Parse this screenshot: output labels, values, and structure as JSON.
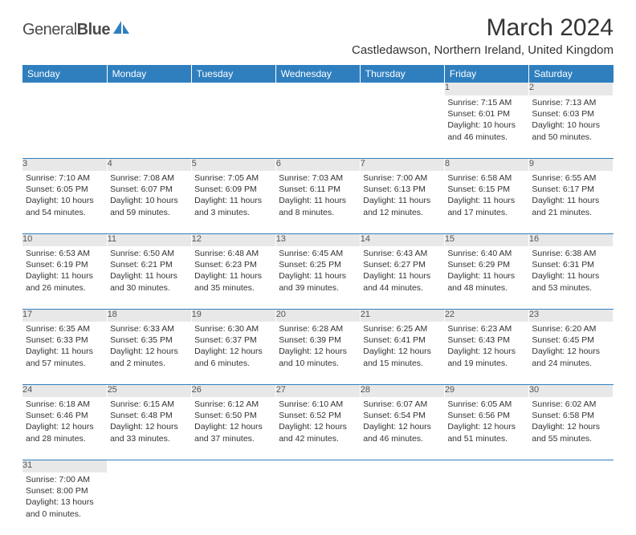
{
  "logo": {
    "part1": "General",
    "part2": "Blue",
    "shape_color": "#2f7fbf"
  },
  "title": "March 2024",
  "location": "Castledawson, Northern Ireland, United Kingdom",
  "colors": {
    "header_bg": "#2f7fbf",
    "header_fg": "#ffffff",
    "daynum_bg": "#e8e8e8"
  },
  "day_headers": [
    "Sunday",
    "Monday",
    "Tuesday",
    "Wednesday",
    "Thursday",
    "Friday",
    "Saturday"
  ],
  "weeks": [
    [
      {
        "n": "",
        "sr": "",
        "ss": "",
        "dl": ""
      },
      {
        "n": "",
        "sr": "",
        "ss": "",
        "dl": ""
      },
      {
        "n": "",
        "sr": "",
        "ss": "",
        "dl": ""
      },
      {
        "n": "",
        "sr": "",
        "ss": "",
        "dl": ""
      },
      {
        "n": "",
        "sr": "",
        "ss": "",
        "dl": ""
      },
      {
        "n": "1",
        "sr": "Sunrise: 7:15 AM",
        "ss": "Sunset: 6:01 PM",
        "dl": "Daylight: 10 hours and 46 minutes."
      },
      {
        "n": "2",
        "sr": "Sunrise: 7:13 AM",
        "ss": "Sunset: 6:03 PM",
        "dl": "Daylight: 10 hours and 50 minutes."
      }
    ],
    [
      {
        "n": "3",
        "sr": "Sunrise: 7:10 AM",
        "ss": "Sunset: 6:05 PM",
        "dl": "Daylight: 10 hours and 54 minutes."
      },
      {
        "n": "4",
        "sr": "Sunrise: 7:08 AM",
        "ss": "Sunset: 6:07 PM",
        "dl": "Daylight: 10 hours and 59 minutes."
      },
      {
        "n": "5",
        "sr": "Sunrise: 7:05 AM",
        "ss": "Sunset: 6:09 PM",
        "dl": "Daylight: 11 hours and 3 minutes."
      },
      {
        "n": "6",
        "sr": "Sunrise: 7:03 AM",
        "ss": "Sunset: 6:11 PM",
        "dl": "Daylight: 11 hours and 8 minutes."
      },
      {
        "n": "7",
        "sr": "Sunrise: 7:00 AM",
        "ss": "Sunset: 6:13 PM",
        "dl": "Daylight: 11 hours and 12 minutes."
      },
      {
        "n": "8",
        "sr": "Sunrise: 6:58 AM",
        "ss": "Sunset: 6:15 PM",
        "dl": "Daylight: 11 hours and 17 minutes."
      },
      {
        "n": "9",
        "sr": "Sunrise: 6:55 AM",
        "ss": "Sunset: 6:17 PM",
        "dl": "Daylight: 11 hours and 21 minutes."
      }
    ],
    [
      {
        "n": "10",
        "sr": "Sunrise: 6:53 AM",
        "ss": "Sunset: 6:19 PM",
        "dl": "Daylight: 11 hours and 26 minutes."
      },
      {
        "n": "11",
        "sr": "Sunrise: 6:50 AM",
        "ss": "Sunset: 6:21 PM",
        "dl": "Daylight: 11 hours and 30 minutes."
      },
      {
        "n": "12",
        "sr": "Sunrise: 6:48 AM",
        "ss": "Sunset: 6:23 PM",
        "dl": "Daylight: 11 hours and 35 minutes."
      },
      {
        "n": "13",
        "sr": "Sunrise: 6:45 AM",
        "ss": "Sunset: 6:25 PM",
        "dl": "Daylight: 11 hours and 39 minutes."
      },
      {
        "n": "14",
        "sr": "Sunrise: 6:43 AM",
        "ss": "Sunset: 6:27 PM",
        "dl": "Daylight: 11 hours and 44 minutes."
      },
      {
        "n": "15",
        "sr": "Sunrise: 6:40 AM",
        "ss": "Sunset: 6:29 PM",
        "dl": "Daylight: 11 hours and 48 minutes."
      },
      {
        "n": "16",
        "sr": "Sunrise: 6:38 AM",
        "ss": "Sunset: 6:31 PM",
        "dl": "Daylight: 11 hours and 53 minutes."
      }
    ],
    [
      {
        "n": "17",
        "sr": "Sunrise: 6:35 AM",
        "ss": "Sunset: 6:33 PM",
        "dl": "Daylight: 11 hours and 57 minutes."
      },
      {
        "n": "18",
        "sr": "Sunrise: 6:33 AM",
        "ss": "Sunset: 6:35 PM",
        "dl": "Daylight: 12 hours and 2 minutes."
      },
      {
        "n": "19",
        "sr": "Sunrise: 6:30 AM",
        "ss": "Sunset: 6:37 PM",
        "dl": "Daylight: 12 hours and 6 minutes."
      },
      {
        "n": "20",
        "sr": "Sunrise: 6:28 AM",
        "ss": "Sunset: 6:39 PM",
        "dl": "Daylight: 12 hours and 10 minutes."
      },
      {
        "n": "21",
        "sr": "Sunrise: 6:25 AM",
        "ss": "Sunset: 6:41 PM",
        "dl": "Daylight: 12 hours and 15 minutes."
      },
      {
        "n": "22",
        "sr": "Sunrise: 6:23 AM",
        "ss": "Sunset: 6:43 PM",
        "dl": "Daylight: 12 hours and 19 minutes."
      },
      {
        "n": "23",
        "sr": "Sunrise: 6:20 AM",
        "ss": "Sunset: 6:45 PM",
        "dl": "Daylight: 12 hours and 24 minutes."
      }
    ],
    [
      {
        "n": "24",
        "sr": "Sunrise: 6:18 AM",
        "ss": "Sunset: 6:46 PM",
        "dl": "Daylight: 12 hours and 28 minutes."
      },
      {
        "n": "25",
        "sr": "Sunrise: 6:15 AM",
        "ss": "Sunset: 6:48 PM",
        "dl": "Daylight: 12 hours and 33 minutes."
      },
      {
        "n": "26",
        "sr": "Sunrise: 6:12 AM",
        "ss": "Sunset: 6:50 PM",
        "dl": "Daylight: 12 hours and 37 minutes."
      },
      {
        "n": "27",
        "sr": "Sunrise: 6:10 AM",
        "ss": "Sunset: 6:52 PM",
        "dl": "Daylight: 12 hours and 42 minutes."
      },
      {
        "n": "28",
        "sr": "Sunrise: 6:07 AM",
        "ss": "Sunset: 6:54 PM",
        "dl": "Daylight: 12 hours and 46 minutes."
      },
      {
        "n": "29",
        "sr": "Sunrise: 6:05 AM",
        "ss": "Sunset: 6:56 PM",
        "dl": "Daylight: 12 hours and 51 minutes."
      },
      {
        "n": "30",
        "sr": "Sunrise: 6:02 AM",
        "ss": "Sunset: 6:58 PM",
        "dl": "Daylight: 12 hours and 55 minutes."
      }
    ],
    [
      {
        "n": "31",
        "sr": "Sunrise: 7:00 AM",
        "ss": "Sunset: 8:00 PM",
        "dl": "Daylight: 13 hours and 0 minutes."
      },
      {
        "n": "",
        "sr": "",
        "ss": "",
        "dl": ""
      },
      {
        "n": "",
        "sr": "",
        "ss": "",
        "dl": ""
      },
      {
        "n": "",
        "sr": "",
        "ss": "",
        "dl": ""
      },
      {
        "n": "",
        "sr": "",
        "ss": "",
        "dl": ""
      },
      {
        "n": "",
        "sr": "",
        "ss": "",
        "dl": ""
      },
      {
        "n": "",
        "sr": "",
        "ss": "",
        "dl": ""
      }
    ]
  ]
}
